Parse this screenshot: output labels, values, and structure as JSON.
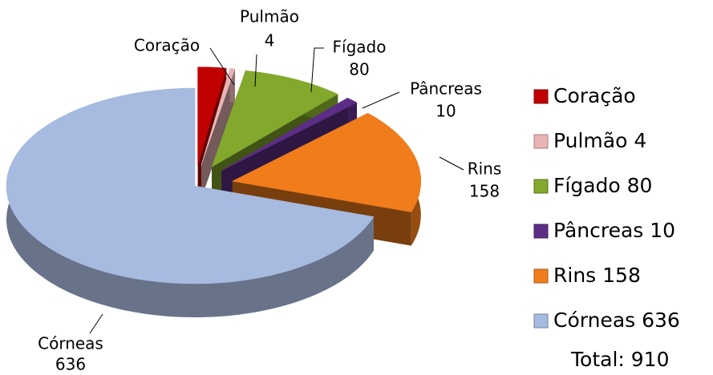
{
  "chart_data": {
    "type": "pie3d",
    "categories": [
      "Coração",
      "Pulmão",
      "Fígado",
      "Pâncreas",
      "Rins",
      "Córneas"
    ],
    "values": [
      22,
      4,
      80,
      10,
      158,
      636
    ],
    "value_labels": [
      null,
      "4",
      "80",
      "10",
      "158",
      "636"
    ],
    "legend_labels": [
      "Coração",
      "Pulmão 4",
      "Fígado 80",
      "Pâncreas 10",
      "Rins 158",
      "Córneas 636"
    ],
    "colors": [
      "#c00000",
      "#e8b4b4",
      "#82a82c",
      "#5b2d86",
      "#f07c1c",
      "#a7badf"
    ],
    "annotation": "Total: 910",
    "legend": "right"
  }
}
